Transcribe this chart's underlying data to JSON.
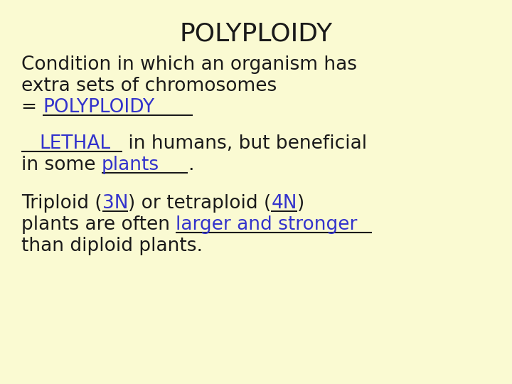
{
  "bg_color": "#FAFAD2",
  "title": "POLYPLOIDY",
  "title_color": "#1a1a1a",
  "title_fontsize": 26,
  "body_fontsize": 19,
  "black": "#1a1a1a",
  "blue": "#3333cc",
  "font_family": "Comic Sans MS",
  "line1": "Condition in which an organism has",
  "line2": "extra sets of chromosomes",
  "line3_prefix": "= ",
  "line3_fill": "POLYPLOIDY",
  "line4_fill": "LETHAL",
  "line4_suffix": " in humans, but beneficial",
  "line5_prefix": "in some ",
  "line5_fill": "plants",
  "line5_suffix": ".",
  "line6_prefix": "Triploid (",
  "line6_fill1": "3N",
  "line6_mid": ") or tetraploid (",
  "line6_fill2": "4N",
  "line6_end": ")",
  "line7_prefix": "plants are often ",
  "line7_fill": "larger and stronger",
  "line8": "than diploid plants."
}
